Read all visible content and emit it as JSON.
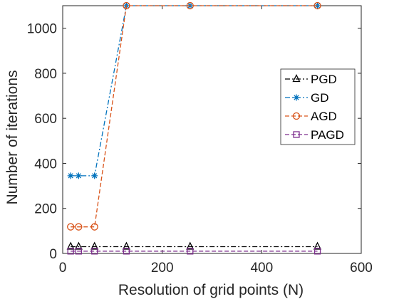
{
  "chart_data": {
    "type": "line",
    "xlabel": "Resolution of grid points (N)",
    "ylabel": "Number of iterations",
    "xlim": [
      0,
      600
    ],
    "ylim": [
      0,
      1100
    ],
    "xticks": [
      0,
      200,
      400,
      600
    ],
    "yticks": [
      0,
      200,
      400,
      600,
      800,
      1000
    ],
    "grid": false,
    "legend_position": "right",
    "x": [
      16,
      32,
      64,
      128,
      256,
      512
    ],
    "series": [
      {
        "name": "PGD",
        "values": [
          30,
          30,
          30,
          30,
          30,
          30
        ],
        "color": "#000000",
        "marker": "triangle",
        "dash": "dashdot"
      },
      {
        "name": "GD",
        "values": [
          345,
          345,
          345,
          1100,
          1100,
          1100
        ],
        "color": "#0072BD",
        "marker": "asterisk",
        "dash": "dashdot"
      },
      {
        "name": "AGD",
        "values": [
          118,
          118,
          118,
          1100,
          1100,
          1100
        ],
        "color": "#D95319",
        "marker": "circle",
        "dash": "dash"
      },
      {
        "name": "PAGD",
        "values": [
          10,
          10,
          10,
          10,
          10,
          10
        ],
        "color": "#7E2F8E",
        "marker": "square",
        "dash": "dash"
      }
    ]
  }
}
